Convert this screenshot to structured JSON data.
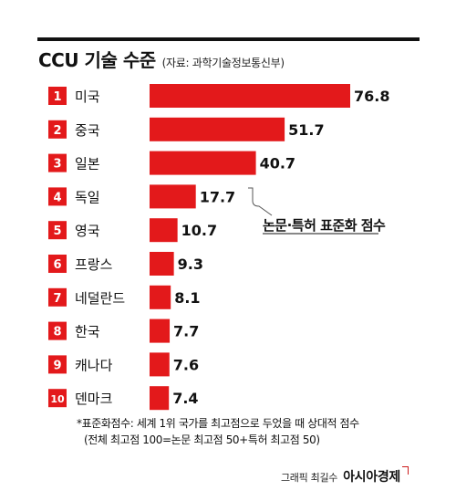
{
  "header": {
    "title": "CCU 기술 수준",
    "subtitle": "(자료: 과학기술정보통신부)"
  },
  "chart_data": {
    "type": "bar",
    "orientation": "horizontal",
    "ranks": [
      "1",
      "2",
      "3",
      "4",
      "5",
      "6",
      "7",
      "8",
      "9",
      "10"
    ],
    "categories": [
      "미국",
      "중국",
      "일본",
      "독일",
      "영국",
      "프랑스",
      "네덜란드",
      "한국",
      "캐나다",
      "덴마크"
    ],
    "values": [
      76.8,
      51.7,
      40.7,
      17.7,
      10.7,
      9.3,
      8.1,
      7.7,
      7.6,
      7.4
    ],
    "xlim": [
      0,
      76.8
    ],
    "annotation": "논문·특허 표준화 점수",
    "colors": {
      "bar": "#e3191b",
      "rank_box": "#e3191b"
    }
  },
  "notes": {
    "line1": "*표준화점수: 세계 1위 국가를 최고점으로 두었을 때 상대적 점수",
    "line2": "(전체 최고점 100=논문 최고점 50+특허 최고점 50)"
  },
  "credit": {
    "text": "그래픽 최길수",
    "brand": "아시아경제"
  }
}
